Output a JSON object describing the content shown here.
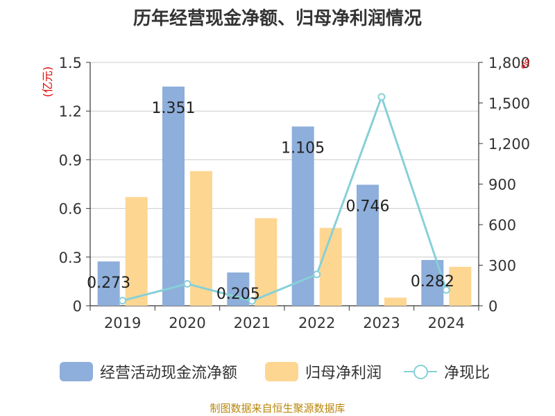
{
  "title": "历年经营现金净额、归母净利润情况",
  "source_note": "制图数据来自恒生聚源数据库",
  "colors": {
    "cash_flow": "#8eaedb",
    "net_profit": "#fdd692",
    "net_ratio": "#86d0d8",
    "axis_unit": "#e00000",
    "grid": "#cccccc",
    "axis": "#333333"
  },
  "chart_data": {
    "type": "bar",
    "categories": [
      "2019",
      "2020",
      "2021",
      "2022",
      "2023",
      "2024"
    ],
    "y_left": {
      "unit": "(亿元)",
      "min": 0,
      "max": 1.5,
      "ticks": [
        "0",
        "0.3",
        "0.6",
        "0.9",
        "1.2",
        "1.5"
      ]
    },
    "y_right": {
      "unit": "%",
      "min": 0,
      "max": 1800,
      "ticks": [
        "0",
        "300",
        "600",
        "900",
        "1,200",
        "1,500",
        "1,800"
      ]
    },
    "series": [
      {
        "name": "经营活动现金流净额",
        "type": "bar",
        "axis": "left",
        "values": [
          0.273,
          1.351,
          0.205,
          1.105,
          0.746,
          0.282
        ],
        "labels": [
          "0.273",
          "1.351",
          "0.205",
          "1.105",
          "0.746",
          "0.282"
        ]
      },
      {
        "name": "归母净利润",
        "type": "bar",
        "axis": "left",
        "values": [
          0.67,
          0.83,
          0.54,
          0.48,
          0.05,
          0.24
        ]
      },
      {
        "name": "净现比",
        "type": "line",
        "axis": "right",
        "values": [
          38,
          162,
          36,
          232,
          1545,
          117
        ]
      }
    ],
    "legend_position": "bottom",
    "grid": true
  }
}
